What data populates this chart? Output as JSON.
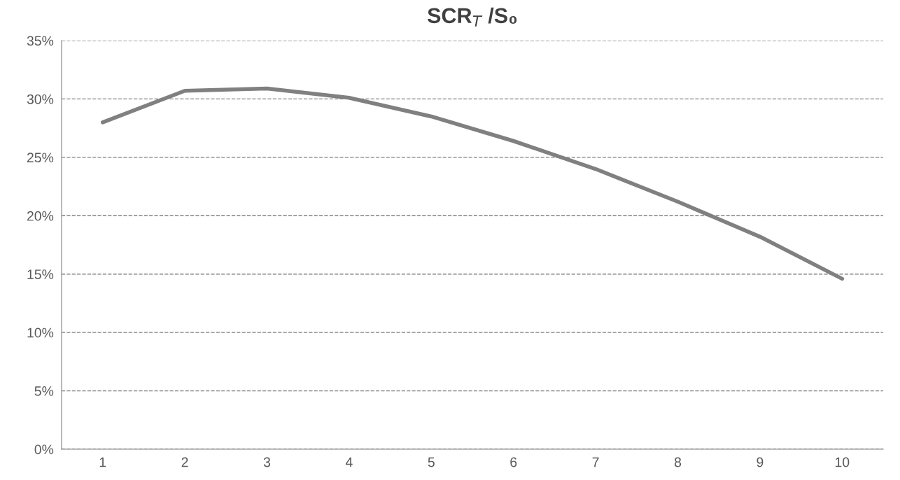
{
  "chart_data": {
    "type": "line",
    "title": "SCR$_{T}$ /S₀",
    "categories": [
      "1",
      "2",
      "3",
      "4",
      "5",
      "6",
      "7",
      "8",
      "9",
      "10"
    ],
    "series": [
      {
        "color": "#808080",
        "values": [
          28.0,
          30.7,
          30.9,
          30.1,
          28.5,
          26.4,
          24.0,
          21.2,
          18.2,
          14.6
        ]
      }
    ],
    "ylim": [
      0,
      35
    ],
    "yticks": [
      {
        "value": 0,
        "label": "0%"
      },
      {
        "value": 5,
        "label": "5%"
      },
      {
        "value": 10,
        "label": "10%"
      },
      {
        "value": 15,
        "label": "15%"
      },
      {
        "value": 20,
        "label": "20%"
      },
      {
        "value": 25,
        "label": "25%"
      },
      {
        "value": 30,
        "label": "30%"
      },
      {
        "value": 35,
        "label": "35%"
      }
    ],
    "grid": "y",
    "legend": false,
    "marker": "none",
    "line_style": "solid"
  }
}
